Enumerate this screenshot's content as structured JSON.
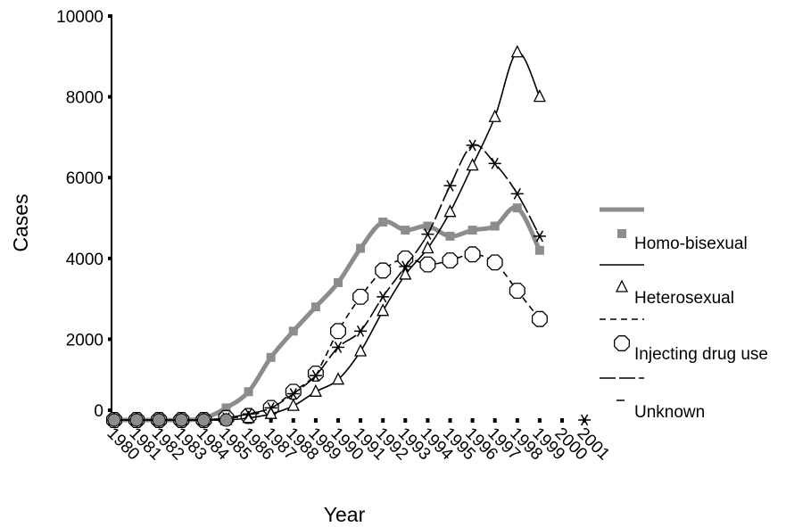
{
  "chart_data": {
    "type": "line",
    "xlabel": "Year",
    "ylabel": "Cases",
    "ylim": [
      0,
      10000
    ],
    "yticks": [
      0,
      2000,
      4000,
      6000,
      8000,
      10000
    ],
    "ytick_labels": [
      "0",
      "2000",
      "4000",
      "6000",
      "8000",
      "10000"
    ],
    "x": [
      1980,
      1981,
      1982,
      1983,
      1984,
      1985,
      1986,
      1987,
      1988,
      1989,
      1990,
      1991,
      1992,
      1993,
      1994,
      1995,
      1996,
      1997,
      1998,
      1999,
      2000,
      2001
    ],
    "xtick_labels": [
      "1980",
      "1981",
      "1982",
      "1983",
      "1984",
      "1985",
      "1986",
      "1987",
      "1988",
      "1989",
      "1990",
      "1991",
      "1992",
      "1993",
      "1994",
      "1995",
      "1996",
      "1997",
      "1998",
      "1999",
      "2000",
      "2001"
    ],
    "legend_position": "right",
    "grid": false,
    "series": [
      {
        "name": "Homo-bisexual",
        "color": "#8c8c8c",
        "marker": "square",
        "line": "thick-solid",
        "values": [
          0,
          0,
          0,
          0,
          40,
          300,
          700,
          1550,
          2200,
          2800,
          3400,
          4250,
          4900,
          4700,
          4800,
          4550,
          4700,
          4800,
          5250,
          4200,
          null,
          null
        ]
      },
      {
        "name": "Heterosexual",
        "color": "#000000",
        "marker": "triangle",
        "line": "solid",
        "values": [
          0,
          0,
          0,
          0,
          0,
          0,
          50,
          150,
          350,
          700,
          1000,
          1700,
          2700,
          3600,
          4250,
          5150,
          6300,
          7500,
          9100,
          8000,
          null,
          null
        ]
      },
      {
        "name": "Injecting drug use",
        "color": "#000000",
        "marker": "circle",
        "line": "dashed",
        "values": [
          0,
          0,
          0,
          0,
          0,
          50,
          100,
          300,
          700,
          1150,
          2200,
          3050,
          3700,
          4000,
          3850,
          3950,
          4100,
          3900,
          3200,
          2500,
          null,
          null
        ]
      },
      {
        "name": "Unknown",
        "color": "#000000",
        "marker": "asterisk",
        "line": "long-dash",
        "values": [
          0,
          0,
          0,
          0,
          0,
          50,
          150,
          300,
          650,
          1100,
          1800,
          2200,
          3050,
          3800,
          4600,
          5800,
          6800,
          6350,
          5600,
          4550,
          null,
          0
        ]
      }
    ]
  }
}
